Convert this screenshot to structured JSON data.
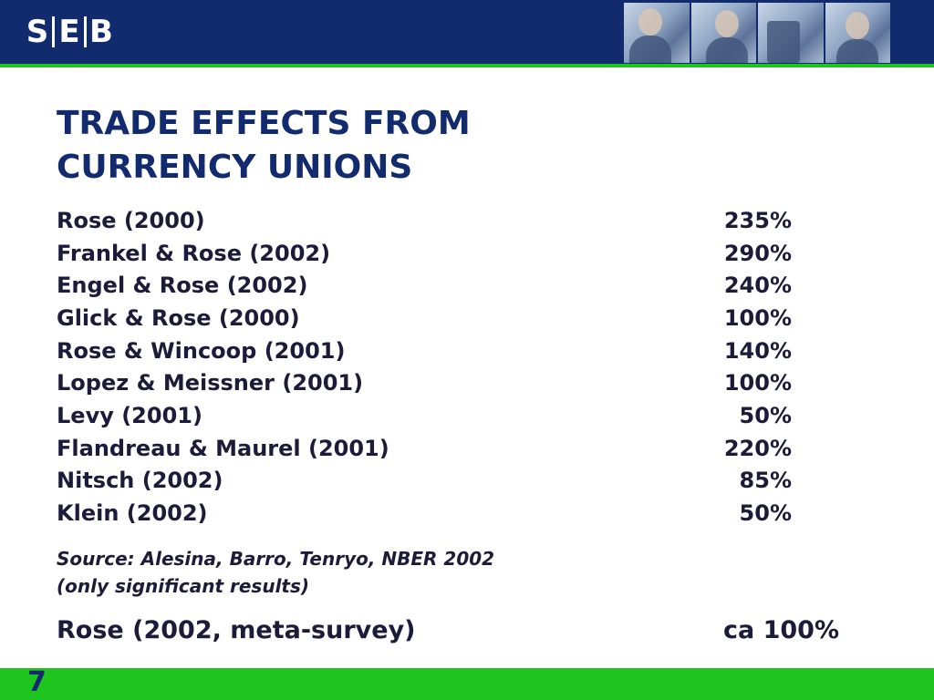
{
  "header": {
    "logo_letters": [
      "S",
      "E",
      "B"
    ],
    "brand_color": "#122a6e",
    "accent_color": "#1fc51f"
  },
  "title": {
    "line1": "TRADE EFFECTS FROM",
    "line2": "CURRENCY UNIONS"
  },
  "studies": [
    {
      "study": "Rose (2000)",
      "effect": "235%"
    },
    {
      "study": "Frankel & Rose (2002)",
      "effect": "290%"
    },
    {
      "study": "Engel & Rose (2002)",
      "effect": "240%"
    },
    {
      "study": "Glick & Rose (2000)",
      "effect": "100%"
    },
    {
      "study": "Rose & Wincoop (2001)",
      "effect": "140%"
    },
    {
      "study": "Lopez & Meissner (2001)",
      "effect": "100%"
    },
    {
      "study": "Levy (2001)",
      "effect": "50%"
    },
    {
      "study": "Flandreau & Maurel (2001)",
      "effect": "220%"
    },
    {
      "study": "Nitsch (2002)",
      "effect": "85%"
    },
    {
      "study": "Klein (2002)",
      "effect": "50%"
    }
  ],
  "source": {
    "line1": "Source: Alesina, Barro, Tenryo, NBER 2002",
    "line2": "(only significant results)"
  },
  "meta_survey": {
    "study": "Rose (2002, meta-survey)",
    "effect": "ca 100%"
  },
  "page_number": "7"
}
